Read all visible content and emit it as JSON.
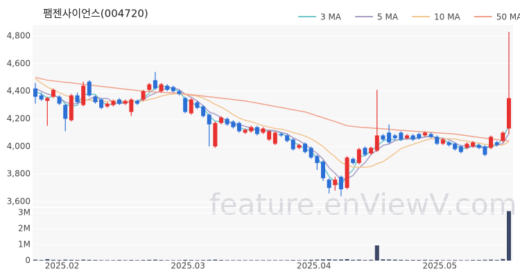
{
  "chart_data": {
    "type": "candlestick",
    "title": "팸젠사이언스(004720)",
    "watermark": "feature.enViewV.com",
    "categories": [
      null,
      null,
      null,
      null,
      "2025.02",
      null,
      null,
      null,
      null,
      null,
      null,
      null,
      null,
      null,
      null,
      null,
      null,
      null,
      null,
      null,
      null,
      null,
      null,
      null,
      null,
      "2025.03",
      null,
      null,
      null,
      null,
      null,
      null,
      null,
      null,
      null,
      null,
      null,
      null,
      null,
      null,
      null,
      null,
      null,
      null,
      null,
      null,
      "2025.04",
      null,
      null,
      null,
      null,
      null,
      null,
      null,
      null,
      null,
      null,
      null,
      null,
      null,
      null,
      null,
      null,
      null,
      null,
      null,
      null,
      "2025.05",
      null,
      null,
      null,
      null,
      null,
      null,
      null,
      null,
      null,
      null,
      null,
      null
    ],
    "open": [
      4420,
      4370,
      4330,
      4360,
      4360,
      4300,
      4190,
      4370,
      4300,
      4470,
      4360,
      4340,
      4290,
      4300,
      4340,
      4310,
      4250,
      4330,
      4340,
      4410,
      4480,
      4400,
      4440,
      4430,
      4400,
      4350,
      4240,
      4320,
      4290,
      4230,
      4000,
      4170,
      4200,
      4180,
      4170,
      4100,
      4110,
      4140,
      4100,
      4050,
      4020,
      4090,
      4080,
      4050,
      3990,
      4020,
      3990,
      3930,
      3890,
      3760,
      3720,
      3780,
      3700,
      3910,
      3880,
      3990,
      3950,
      3970,
      4080,
      4100,
      4080,
      4100,
      4060,
      4080,
      4090,
      4080,
      4090,
      4070,
      4020,
      4030,
      4020,
      4000,
      3990,
      4000,
      4010,
      4000,
      3990,
      4030,
      4040,
      4130
    ],
    "high": [
      4460,
      4390,
      4360,
      4420,
      4370,
      4310,
      4380,
      4390,
      4470,
      4480,
      4370,
      4350,
      4320,
      4340,
      4350,
      4340,
      4350,
      4340,
      4410,
      4460,
      4540,
      4460,
      4450,
      4440,
      4410,
      4360,
      4350,
      4330,
      4300,
      4240,
      4180,
      4220,
      4210,
      4190,
      4180,
      4130,
      4150,
      4150,
      4140,
      4120,
      4110,
      4100,
      4090,
      4060,
      4020,
      4030,
      4000,
      3940,
      3900,
      3770,
      3780,
      3790,
      3930,
      3920,
      3990,
      4000,
      4000,
      4410,
      4090,
      4160,
      4090,
      4110,
      4090,
      4090,
      4100,
      4110,
      4100,
      4080,
      4060,
      4040,
      4030,
      4010,
      4030,
      4040,
      4020,
      4010,
      4080,
      4040,
      4110,
      4830
    ],
    "low": [
      4310,
      4330,
      4150,
      4350,
      4300,
      4110,
      4180,
      4310,
      4290,
      4360,
      4310,
      4270,
      4280,
      4290,
      4300,
      4300,
      4220,
      4300,
      4330,
      4400,
      4410,
      4390,
      4400,
      4390,
      4370,
      4240,
      4230,
      4270,
      4210,
      4000,
      3990,
      4160,
      4150,
      4130,
      4100,
      4090,
      4100,
      4080,
      4090,
      4040,
      4010,
      4070,
      4030,
      3970,
      3980,
      3950,
      3910,
      3830,
      3750,
      3660,
      3680,
      3640,
      3690,
      3870,
      3870,
      3930,
      3940,
      3960,
      4040,
      4020,
      4050,
      4040,
      4050,
      4040,
      4050,
      4070,
      4060,
      4010,
      4010,
      4000,
      3970,
      3950,
      3980,
      3990,
      3980,
      3930,
      3980,
      4000,
      4030,
      4090
    ],
    "close": [
      4360,
      4340,
      4350,
      4410,
      4310,
      4200,
      4370,
      4320,
      4440,
      4370,
      4320,
      4280,
      4310,
      4330,
      4310,
      4330,
      4340,
      4310,
      4400,
      4450,
      4420,
      4450,
      4410,
      4400,
      4380,
      4250,
      4340,
      4280,
      4220,
      4160,
      4170,
      4210,
      4160,
      4140,
      4110,
      4120,
      4140,
      4090,
      4130,
      4110,
      4100,
      4080,
      4040,
      3980,
      4010,
      3960,
      3920,
      3880,
      3770,
      3700,
      3760,
      3690,
      3920,
      3880,
      3980,
      3940,
      3990,
      4080,
      4050,
      4030,
      4060,
      4050,
      4080,
      4050,
      4060,
      4100,
      4070,
      4020,
      4050,
      4010,
      3980,
      3960,
      4020,
      4030,
      3990,
      3940,
      4070,
      4010,
      4100,
      4350
    ],
    "volume": [
      60000,
      40000,
      90000,
      50000,
      40000,
      60000,
      50000,
      40000,
      60000,
      50000,
      40000,
      30000,
      30000,
      30000,
      40000,
      30000,
      40000,
      30000,
      40000,
      50000,
      60000,
      40000,
      30000,
      30000,
      30000,
      50000,
      40000,
      30000,
      40000,
      50000,
      60000,
      40000,
      30000,
      30000,
      30000,
      30000,
      30000,
      30000,
      30000,
      30000,
      30000,
      30000,
      30000,
      40000,
      30000,
      40000,
      50000,
      60000,
      70000,
      80000,
      60000,
      70000,
      90000,
      50000,
      60000,
      40000,
      50000,
      950000,
      80000,
      70000,
      60000,
      50000,
      40000,
      40000,
      40000,
      50000,
      40000,
      40000,
      30000,
      30000,
      40000,
      30000,
      30000,
      40000,
      40000,
      50000,
      60000,
      40000,
      100000,
      3100000
    ],
    "up_color": "#e8312f",
    "down_color": "#2a6fd6",
    "volume_color": "#3d4766",
    "series": [
      {
        "name": "3 MA",
        "color": "#6cc6c9",
        "values": [
          4400,
          4380,
          4350,
          4367,
          4357,
          4307,
          4293,
          4297,
          4377,
          4377,
          4377,
          4323,
          4303,
          4307,
          4317,
          4323,
          4327,
          4327,
          4350,
          4387,
          4423,
          4440,
          4427,
          4420,
          4397,
          4343,
          4323,
          4290,
          4280,
          4220,
          4183,
          4180,
          4180,
          4170,
          4137,
          4123,
          4123,
          4117,
          4120,
          4110,
          4113,
          4097,
          4073,
          4033,
          4010,
          3983,
          3963,
          3920,
          3857,
          3783,
          3743,
          3717,
          3790,
          3830,
          3927,
          3933,
          3970,
          4003,
          4040,
          4053,
          4047,
          4047,
          4063,
          4060,
          4063,
          4070,
          4077,
          4063,
          4047,
          4027,
          4013,
          3983,
          3987,
          4003,
          4013,
          3987,
          4000,
          4007,
          4060,
          4153
        ]
      },
      {
        "name": "5 MA",
        "color": "#a79ac4",
        "values": [
          4420,
          4400,
          4380,
          4370,
          4354,
          4322,
          4308,
          4310,
          4328,
          4342,
          4364,
          4346,
          4348,
          4322,
          4310,
          4316,
          4324,
          4326,
          4338,
          4368,
          4386,
          4406,
          4426,
          4426,
          4412,
          4378,
          4356,
          4330,
          4294,
          4250,
          4234,
          4208,
          4184,
          4168,
          4158,
          4146,
          4134,
          4120,
          4118,
          4118,
          4114,
          4102,
          4092,
          4062,
          4042,
          4014,
          3982,
          3950,
          3908,
          3846,
          3806,
          3760,
          3768,
          3790,
          3846,
          3882,
          3942,
          3974,
          4008,
          4018,
          4042,
          4054,
          4054,
          4054,
          4060,
          4068,
          4072,
          4060,
          4060,
          4050,
          4026,
          4004,
          4004,
          4000,
          3996,
          3988,
          4010,
          4008,
          4022,
          4094
        ]
      },
      {
        "name": "10 MA",
        "color": "#f2c48d",
        "values": [
          4490,
          4460,
          4430,
          4410,
          4390,
          4370,
          4355,
          4340,
          4340,
          4335,
          4330,
          4330,
          4325,
          4330,
          4330,
          4325,
          4325,
          4325,
          4330,
          4340,
          4350,
          4365,
          4375,
          4380,
          4385,
          4375,
          4370,
          4365,
          4350,
          4330,
          4305,
          4285,
          4260,
          4230,
          4205,
          4190,
          4180,
          4165,
          4150,
          4140,
          4130,
          4125,
          4115,
          4100,
          4090,
          4075,
          4055,
          4030,
          4000,
          3960,
          3925,
          3885,
          3865,
          3850,
          3850,
          3850,
          3855,
          3875,
          3890,
          3920,
          3950,
          3985,
          4000,
          4015,
          4030,
          4045,
          4055,
          4055,
          4055,
          4055,
          4055,
          4045,
          4040,
          4030,
          4025,
          4015,
          4015,
          4010,
          4010,
          4035
        ]
      },
      {
        "name": "50 MA",
        "color": "#f0a088",
        "values": [
          4500,
          4490,
          4480,
          4475,
          4470,
          4465,
          4460,
          4455,
          4450,
          4445,
          4440,
          4435,
          4430,
          4425,
          4420,
          4415,
          4410,
          4405,
          4400,
          4398,
          4395,
          4392,
          4390,
          4388,
          4385,
          4380,
          4375,
          4370,
          4365,
          4360,
          4355,
          4350,
          4345,
          4340,
          4335,
          4330,
          4322,
          4314,
          4306,
          4298,
          4290,
          4282,
          4274,
          4266,
          4258,
          4250,
          4236,
          4222,
          4208,
          4194,
          4180,
          4165,
          4150,
          4145,
          4140,
          4137,
          4134,
          4131,
          4128,
          4125,
          4120,
          4117,
          4114,
          4111,
          4108,
          4105,
          4102,
          4099,
          4096,
          4093,
          4090,
          4084,
          4078,
          4072,
          4066,
          4060,
          4055,
          4050,
          4045,
          4040
        ]
      }
    ],
    "ylim": [
      3565,
      4880
    ],
    "yticks": [
      {
        "value": 3600,
        "label": "3,600"
      },
      {
        "value": 3800,
        "label": "3,800"
      },
      {
        "value": 4000,
        "label": "4,000"
      },
      {
        "value": 4200,
        "label": "4,200"
      },
      {
        "value": 4400,
        "label": "4,400"
      },
      {
        "value": 4600,
        "label": "4,600"
      },
      {
        "value": 4800,
        "label": "4,800"
      }
    ],
    "volume_ylim": [
      0,
      3300000
    ],
    "volume_yticks": [
      0,
      {
        "value": 1000000,
        "label": "1M"
      },
      {
        "value": 2000000,
        "label": "2M"
      },
      {
        "value": 3000000,
        "label": "3M"
      }
    ],
    "legend": "top-right",
    "grid": true
  }
}
